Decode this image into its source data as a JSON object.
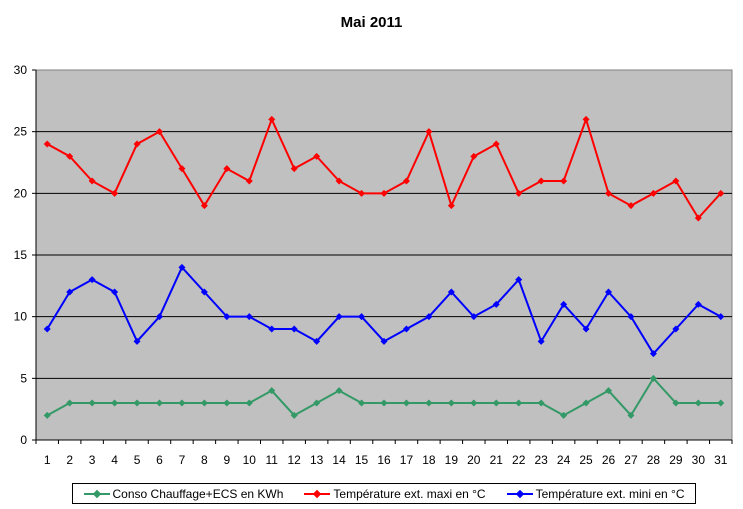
{
  "chart_data": {
    "type": "line",
    "title": "Mai 2011",
    "xlabel": "",
    "ylabel": "",
    "categories": [
      "1",
      "2",
      "3",
      "4",
      "5",
      "6",
      "7",
      "8",
      "9",
      "10",
      "11",
      "12",
      "13",
      "14",
      "15",
      "16",
      "17",
      "18",
      "19",
      "20",
      "21",
      "22",
      "23",
      "24",
      "25",
      "26",
      "27",
      "28",
      "29",
      "30",
      "31"
    ],
    "ylim": [
      0,
      30
    ],
    "yticks": [
      "0",
      "5",
      "10",
      "15",
      "20",
      "25",
      "30"
    ],
    "grid": true,
    "legend_position": "bottom",
    "plot_background": "#C0C0C0",
    "series": [
      {
        "name": "Conso Chauffage+ECS en KWh",
        "color": "#339966",
        "values": [
          2,
          3,
          3,
          3,
          3,
          3,
          3,
          3,
          3,
          3,
          4,
          2,
          3,
          4,
          3,
          3,
          3,
          3,
          3,
          3,
          3,
          3,
          3,
          2,
          3,
          4,
          2,
          5,
          3,
          3,
          3
        ]
      },
      {
        "name": "Température ext. maxi en °C",
        "color": "#FF0000",
        "values": [
          24,
          23,
          21,
          20,
          24,
          25,
          22,
          19,
          22,
          21,
          26,
          22,
          23,
          21,
          20,
          20,
          21,
          25,
          19,
          23,
          24,
          20,
          21,
          21,
          26,
          20,
          19,
          20,
          21,
          18,
          20
        ]
      },
      {
        "name": "Température ext. mini en °C",
        "color": "#0000FF",
        "values": [
          9,
          12,
          13,
          12,
          8,
          10,
          14,
          12,
          10,
          10,
          9,
          9,
          8,
          10,
          10,
          8,
          9,
          10,
          12,
          10,
          11,
          13,
          8,
          11,
          9,
          12,
          10,
          7,
          9,
          11,
          10
        ]
      }
    ]
  }
}
